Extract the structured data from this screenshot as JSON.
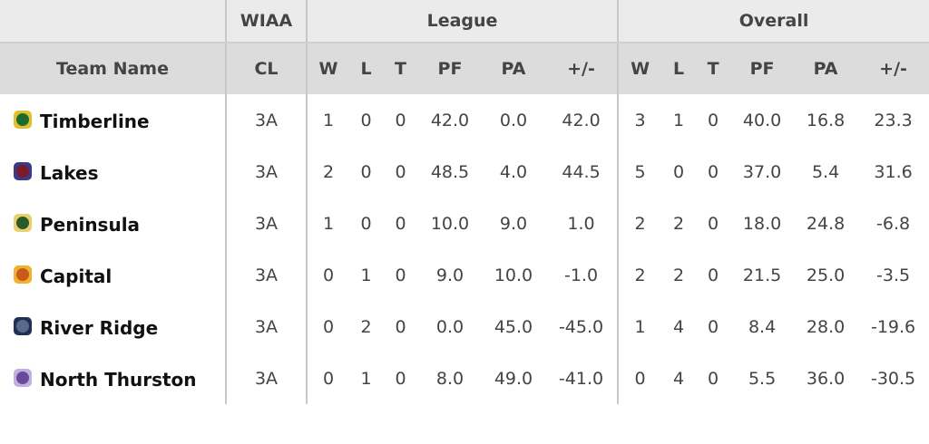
{
  "table": {
    "header_groups": [
      "WIAA",
      "League",
      "Overall"
    ],
    "columns": [
      "Team Name",
      "CL",
      "W",
      "L",
      "T",
      "PF",
      "PA",
      "+/-",
      "W",
      "L",
      "T",
      "PF",
      "PA",
      "+/-"
    ],
    "rows": [
      [
        "Timberline",
        "3A",
        "1",
        "0",
        "0",
        "42.0",
        "0.0",
        "42.0",
        "3",
        "1",
        "0",
        "40.0",
        "16.8",
        "23.3"
      ],
      [
        "Lakes",
        "3A",
        "2",
        "0",
        "0",
        "48.5",
        "4.0",
        "44.5",
        "5",
        "0",
        "0",
        "37.0",
        "5.4",
        "31.6"
      ],
      [
        "Peninsula",
        "3A",
        "1",
        "0",
        "0",
        "10.0",
        "9.0",
        "1.0",
        "2",
        "2",
        "0",
        "18.0",
        "24.8",
        "-6.8"
      ],
      [
        "Capital",
        "3A",
        "0",
        "1",
        "0",
        "9.0",
        "10.0",
        "-1.0",
        "2",
        "2",
        "0",
        "21.5",
        "25.0",
        "-3.5"
      ],
      [
        "River Ridge",
        "3A",
        "0",
        "2",
        "0",
        "0.0",
        "45.0",
        "-45.0",
        "1",
        "4",
        "0",
        "8.4",
        "28.0",
        "-19.6"
      ],
      [
        "North Thurston",
        "3A",
        "0",
        "1",
        "0",
        "8.0",
        "49.0",
        "-41.0",
        "0",
        "4",
        "0",
        "5.5",
        "36.0",
        "-30.5"
      ]
    ]
  }
}
